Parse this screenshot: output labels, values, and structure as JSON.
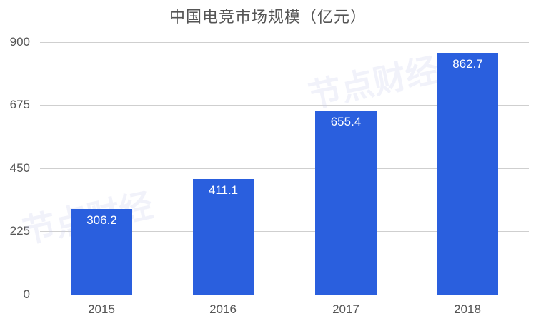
{
  "chart_data": {
    "type": "bar",
    "title": "中国电竞市场规模（亿元）",
    "xlabel": "",
    "ylabel": "",
    "categories": [
      "2015",
      "2016",
      "2017",
      "2018"
    ],
    "values": [
      306.2,
      411.1,
      655.4,
      862.7
    ],
    "data_labels": [
      "306.2",
      "411.1",
      "655.4",
      "862.7"
    ],
    "yticks": [
      "0",
      "225",
      "450",
      "675",
      "900"
    ],
    "ylim": [
      0,
      900
    ],
    "grid": true,
    "legend": null,
    "bar_color": "#2a5fde"
  },
  "watermark": {
    "text": "节点财经"
  }
}
